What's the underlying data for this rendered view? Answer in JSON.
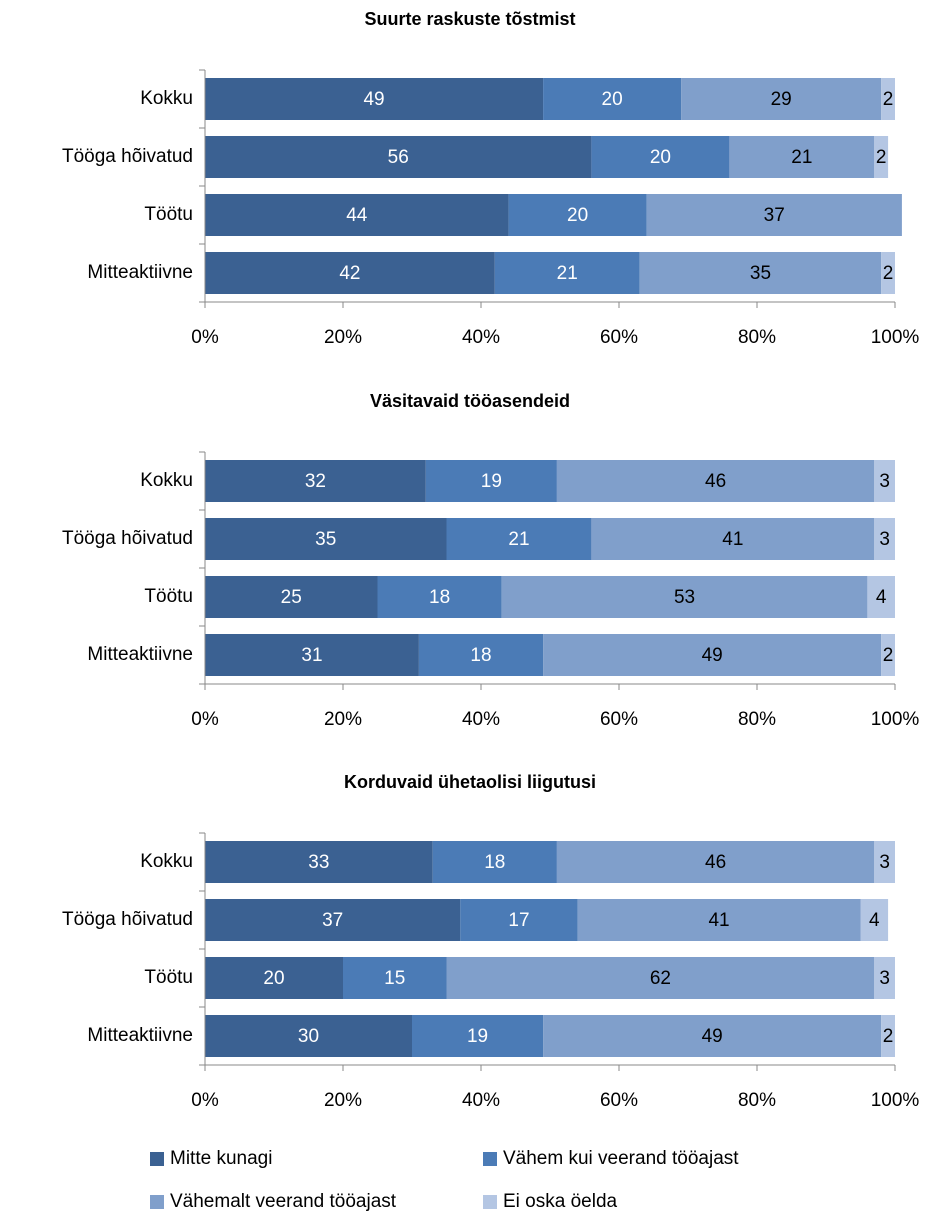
{
  "chart_data": [
    {
      "type": "bar",
      "title": "Suurte raskuste tõstmist",
      "categories": [
        "Kokku",
        "Tööga hõivatud",
        "Töötu",
        "Mitteaktiivne"
      ],
      "series": [
        {
          "values": [
            49,
            56,
            44,
            42
          ]
        },
        {
          "values": [
            20,
            20,
            20,
            21
          ]
        },
        {
          "values": [
            29,
            21,
            37,
            35
          ]
        },
        {
          "values": [
            2,
            2,
            null,
            2
          ]
        }
      ],
      "xlim": [
        0,
        100
      ],
      "xticks": [
        {
          "value": 0,
          "label": "0%"
        },
        {
          "value": 20,
          "label": "20%"
        },
        {
          "value": 40,
          "label": "40%"
        },
        {
          "value": 60,
          "label": "60%"
        },
        {
          "value": 80,
          "label": "80%"
        },
        {
          "value": 100,
          "label": "100%"
        }
      ]
    },
    {
      "type": "bar",
      "title": "Väsitavaid tööasendeid",
      "categories": [
        "Kokku",
        "Tööga hõivatud",
        "Töötu",
        "Mitteaktiivne"
      ],
      "series": [
        {
          "values": [
            32,
            35,
            25,
            31
          ]
        },
        {
          "values": [
            19,
            21,
            18,
            18
          ]
        },
        {
          "values": [
            46,
            41,
            53,
            49
          ]
        },
        {
          "values": [
            3,
            3,
            4,
            2
          ]
        }
      ],
      "xlim": [
        0,
        100
      ],
      "xticks": [
        {
          "value": 0,
          "label": "0%"
        },
        {
          "value": 20,
          "label": "20%"
        },
        {
          "value": 40,
          "label": "40%"
        },
        {
          "value": 60,
          "label": "60%"
        },
        {
          "value": 80,
          "label": "80%"
        },
        {
          "value": 100,
          "label": "100%"
        }
      ]
    },
    {
      "type": "bar",
      "title": "Korduvaid ühetaolisi liigutusi",
      "categories": [
        "Kokku",
        "Tööga hõivatud",
        "Töötu",
        "Mitteaktiivne"
      ],
      "series": [
        {
          "values": [
            33,
            37,
            20,
            30
          ]
        },
        {
          "values": [
            18,
            17,
            15,
            19
          ]
        },
        {
          "values": [
            46,
            41,
            62,
            49
          ]
        },
        {
          "values": [
            3,
            4,
            3,
            2
          ]
        }
      ],
      "xlim": [
        0,
        100
      ],
      "xticks": [
        {
          "value": 0,
          "label": "0%"
        },
        {
          "value": 20,
          "label": "20%"
        },
        {
          "value": 40,
          "label": "40%"
        },
        {
          "value": 60,
          "label": "60%"
        },
        {
          "value": 80,
          "label": "80%"
        },
        {
          "value": 100,
          "label": "100%"
        }
      ]
    }
  ],
  "legend": [
    {
      "name": "Mitte kunagi",
      "color": "#3b6192"
    },
    {
      "name": "Vähem kui veerand tööajast",
      "color": "#4b7bb6"
    },
    {
      "name": "Vähemalt veerand tööajast",
      "color": "#809fcb"
    },
    {
      "name": "Ei oska öelda",
      "color": "#b4c6e3"
    }
  ]
}
